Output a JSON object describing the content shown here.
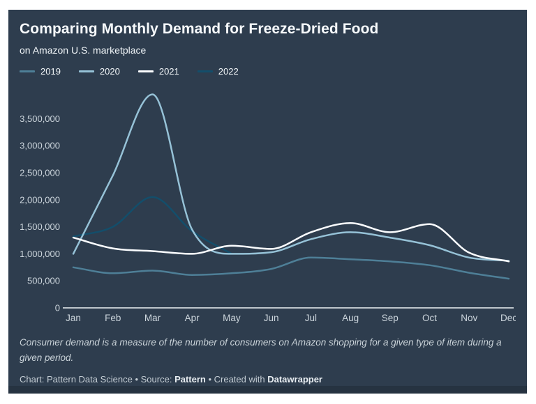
{
  "header": {
    "title": "Comparing Monthly Demand for Freeze-Dried Food",
    "subtitle": "on Amazon U.S. marketplace"
  },
  "legend": {
    "items": [
      {
        "label": "2019",
        "color": "#4e7f97"
      },
      {
        "label": "2020",
        "color": "#96c2d7"
      },
      {
        "label": "2021",
        "color": "#fbfdff"
      },
      {
        "label": "2022",
        "color": "#134e6b"
      }
    ]
  },
  "chart_data": {
    "type": "line",
    "categories": [
      "Jan",
      "Feb",
      "Mar",
      "Apr",
      "May",
      "Jun",
      "Jul",
      "Aug",
      "Sep",
      "Oct",
      "Nov",
      "Dec"
    ],
    "series": [
      {
        "name": "2019",
        "color": "#4e7f97",
        "values": [
          750000,
          640000,
          690000,
          610000,
          640000,
          720000,
          930000,
          900000,
          860000,
          790000,
          650000,
          540000
        ]
      },
      {
        "name": "2020",
        "color": "#96c2d7",
        "values": [
          1000000,
          2450000,
          3950000,
          1450000,
          1000000,
          1030000,
          1270000,
          1400000,
          1300000,
          1160000,
          930000,
          870000
        ]
      },
      {
        "name": "2021",
        "color": "#fbfdff",
        "values": [
          1300000,
          1100000,
          1050000,
          1000000,
          1150000,
          1090000,
          1400000,
          1570000,
          1400000,
          1550000,
          1020000,
          860000
        ]
      },
      {
        "name": "2022",
        "color": "#134e6b",
        "values": [
          1320000,
          1500000,
          2050000,
          1420000,
          1000000,
          null,
          null,
          null,
          null,
          null,
          null,
          null
        ]
      }
    ],
    "ylim": [
      0,
      3950000
    ],
    "yticks": [
      0,
      500000,
      1000000,
      1500000,
      2000000,
      2500000,
      3000000,
      3500000
    ],
    "grid": false,
    "legend_position": "top",
    "axis_text_color": "#ccd5dc",
    "axis_line_color": "#eef3f6"
  },
  "footer": {
    "caption": "Consumer demand is a measure of the number of consumers on Amazon shopping for a given type of item during a given period.",
    "credit": {
      "prefix": "Chart: Pattern Data Science • Source: ",
      "source": "Pattern",
      "middle": " • Created with ",
      "tool": "Datawrapper"
    }
  }
}
